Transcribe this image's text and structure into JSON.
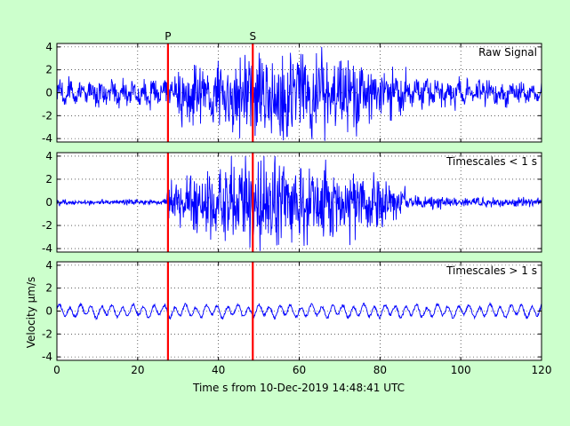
{
  "figure": {
    "background": "#ccffcc",
    "xlabel": "Time s from 10-Dec-2019 14:48:41 UTC",
    "ylabel": "Velocity μm/s",
    "trace_color": "#0000ff",
    "phase_color": "#ff0000"
  },
  "chart_data": [
    {
      "type": "line",
      "title": "Raw Signal",
      "xlim": [
        0,
        120
      ],
      "ylim": [
        -4.3,
        4.3
      ],
      "x_ticks": [
        0,
        20,
        40,
        60,
        80,
        100,
        120
      ],
      "y_ticks": [
        -4,
        -2,
        0,
        2,
        4
      ],
      "grid": true,
      "phase_markers": [
        {
          "label": "P",
          "x": 27.5
        },
        {
          "label": "S",
          "x": 48.5
        }
      ],
      "envelope": {
        "times": [
          0,
          26,
          27.5,
          30,
          35,
          40,
          45,
          50,
          55,
          60,
          65,
          70,
          75,
          80,
          85,
          90,
          100,
          110,
          120
        ],
        "amplitudes": [
          0.8,
          0.8,
          1.3,
          1.9,
          2.3,
          2.6,
          3.1,
          3.4,
          3.5,
          3.4,
          3.0,
          2.6,
          2.2,
          2.0,
          1.3,
          1.0,
          0.9,
          0.8,
          0.8
        ]
      },
      "peak_min": -4.2,
      "peak_max": 4.0,
      "series": [
        {
          "values_summary": "seismogram, background noise about ±0.8, strong shaking from ~27 s to ~80 s"
        }
      ]
    },
    {
      "type": "line",
      "title": "Timescales < 1 s",
      "xlim": [
        0,
        120
      ],
      "ylim": [
        -4.3,
        4.3
      ],
      "x_ticks": [
        0,
        20,
        40,
        60,
        80,
        100,
        120
      ],
      "y_ticks": [
        -4,
        -2,
        0,
        2,
        4
      ],
      "grid": true,
      "phase_markers": [
        {
          "label": "P",
          "x": 27.5
        },
        {
          "label": "S",
          "x": 48.5
        }
      ],
      "envelope": {
        "times": [
          0,
          26,
          27.5,
          30,
          35,
          40,
          45,
          50,
          55,
          60,
          65,
          70,
          75,
          80,
          85,
          90,
          100,
          110,
          120
        ],
        "amplitudes": [
          0.2,
          0.2,
          1.3,
          1.9,
          2.3,
          2.6,
          3.1,
          3.4,
          3.5,
          3.4,
          3.0,
          2.6,
          2.2,
          2.0,
          1.0,
          0.5,
          0.35,
          0.3,
          0.3
        ]
      },
      "peak_min": -4.2,
      "peak_max": 4.0,
      "series": [
        {
          "values_summary": "high-pass filtered seismogram, quiet before 27 s, strong shaking to ~80 s"
        }
      ]
    },
    {
      "type": "line",
      "title": "Timescales > 1 s",
      "xlim": [
        0,
        120
      ],
      "ylim": [
        -4.3,
        4.3
      ],
      "x_ticks": [
        0,
        20,
        40,
        60,
        80,
        100,
        120
      ],
      "y_ticks": [
        -4,
        -2,
        0,
        2,
        4
      ],
      "grid": true,
      "phase_markers": [
        {
          "label": "P",
          "x": 27.5
        },
        {
          "label": "S",
          "x": 48.5
        }
      ],
      "envelope": {
        "times": [
          0,
          120
        ],
        "amplitudes": [
          0.6,
          0.6
        ]
      },
      "peak_min": -1.0,
      "peak_max": 1.0,
      "series": [
        {
          "values_summary": "low-pass filtered microseism, steady oscillation about ±0.6"
        }
      ]
    }
  ]
}
